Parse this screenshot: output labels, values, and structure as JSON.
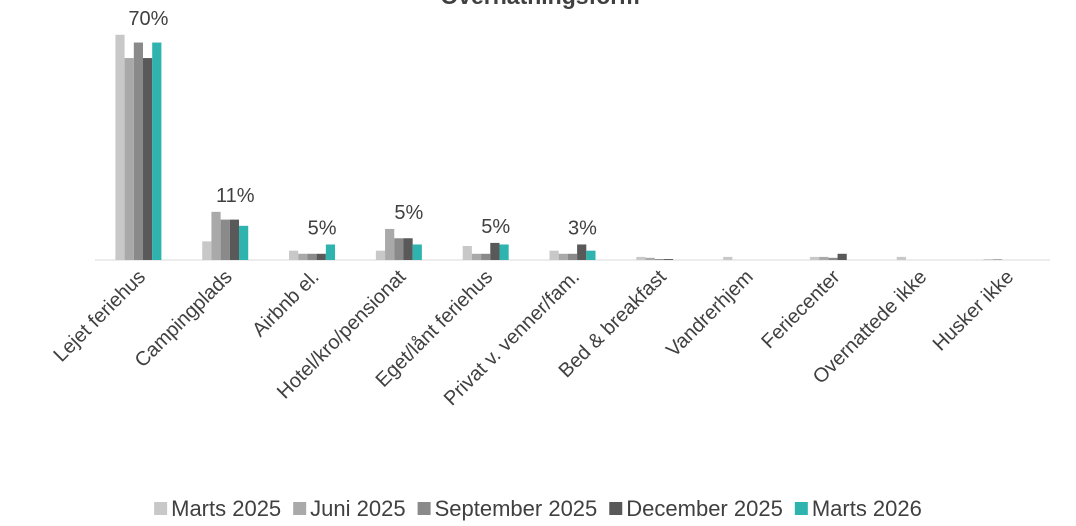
{
  "chart_data": {
    "type": "bar",
    "title": "Overnatningsform",
    "categories": [
      "Lejet feriehus",
      "Campingplads",
      "Airbnb el.",
      "Hotel/kro/pensionat",
      "Eget/lånt feriehus",
      "Privat v. venner/fam.",
      "Bed & breakfast",
      "Vandrerhjem",
      "Feriecenter",
      "Overnattede ikke",
      "Husker ikke"
    ],
    "series": [
      {
        "name": "Marts 2025",
        "color": "#c8c8c8",
        "values": [
          72.5,
          6,
          3,
          3,
          4.5,
          3,
          1,
          1,
          1,
          1,
          0.3
        ]
      },
      {
        "name": "Juni 2025",
        "color": "#a9a9a9",
        "values": [
          65,
          15.5,
          2,
          10,
          2,
          2,
          0.7,
          0,
          1,
          0,
          0.3
        ]
      },
      {
        "name": "September 2025",
        "color": "#8a8a8a",
        "values": [
          70,
          13,
          2,
          7,
          2,
          2,
          0.3,
          0,
          0.7,
          0,
          0
        ]
      },
      {
        "name": "December 2025",
        "color": "#595959",
        "values": [
          65,
          13,
          2,
          7,
          5.5,
          5,
          0.3,
          0,
          2,
          0,
          0
        ]
      },
      {
        "name": "Marts 2026",
        "color": "#2fb3ae",
        "values": [
          70,
          11,
          5,
          5,
          5,
          3,
          0,
          0,
          0,
          0,
          0
        ],
        "value_labels": [
          "70%",
          "11%",
          "5%",
          "5%",
          "5%",
          "3%",
          null,
          null,
          null,
          null,
          null
        ]
      }
    ],
    "ylim": [
      0,
      75
    ]
  }
}
